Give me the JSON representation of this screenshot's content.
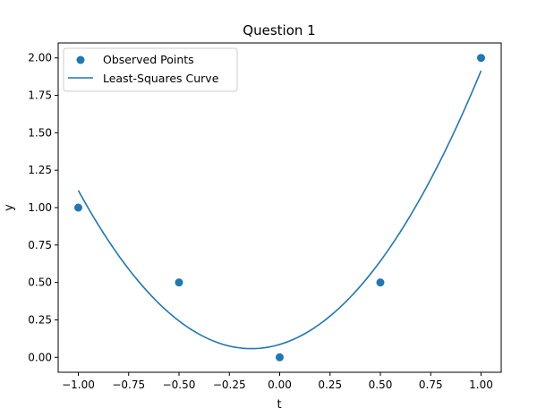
{
  "chart_data": {
    "type": "scatter",
    "title": "Question 1",
    "xlabel": "t",
    "ylabel": "y",
    "xlim": [
      -1.1,
      1.1
    ],
    "ylim": [
      -0.1,
      2.1
    ],
    "xticks": [
      -1.0,
      -0.75,
      -0.5,
      -0.25,
      0.0,
      0.25,
      0.5,
      0.75,
      1.0
    ],
    "xtick_labels": [
      "−1.00",
      "−0.75",
      "−0.50",
      "−0.25",
      "0.00",
      "0.25",
      "0.50",
      "0.75",
      "1.00"
    ],
    "yticks": [
      0.0,
      0.25,
      0.5,
      0.75,
      1.0,
      1.25,
      1.5,
      1.75,
      2.0
    ],
    "ytick_labels": [
      "0.00",
      "0.25",
      "0.50",
      "0.75",
      "1.00",
      "1.25",
      "1.50",
      "1.75",
      "2.00"
    ],
    "grid": false,
    "legend_position": "top-left",
    "series": [
      {
        "name": "Observed Points",
        "kind": "scatter",
        "color": "#1f77b4",
        "x": [
          -1.0,
          -0.5,
          0.0,
          0.5,
          1.0
        ],
        "y": [
          1.0,
          0.5,
          0.0,
          0.5,
          2.0
        ]
      },
      {
        "name": "Least-Squares Curve",
        "kind": "line",
        "color": "#1f77b4",
        "x_range": [
          -1.0,
          1.0
        ],
        "quadratic_coefficients": [
          0.0857,
          0.4,
          1.4286
        ]
      }
    ]
  }
}
